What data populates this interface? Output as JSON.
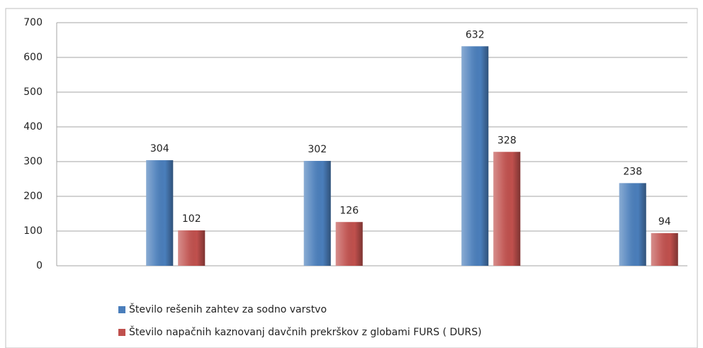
{
  "chart_data": {
    "type": "bar",
    "categories": [
      null,
      null,
      null,
      null
    ],
    "series": [
      {
        "name": "Število rešenih zahtev za sodno varstvo",
        "color": "#4a7ebb",
        "values": [
          304,
          302,
          632,
          238
        ]
      },
      {
        "name": "Število napačnih kaznovanj davčnih prekrškov z globami FURS ( DURS)",
        "color": "#c0504d",
        "values": [
          102,
          126,
          328,
          94
        ]
      }
    ],
    "ylim": [
      0,
      700
    ],
    "yticks": [
      0,
      100,
      200,
      300,
      400,
      500,
      600,
      700
    ],
    "grid": true,
    "legend": "bottom"
  }
}
